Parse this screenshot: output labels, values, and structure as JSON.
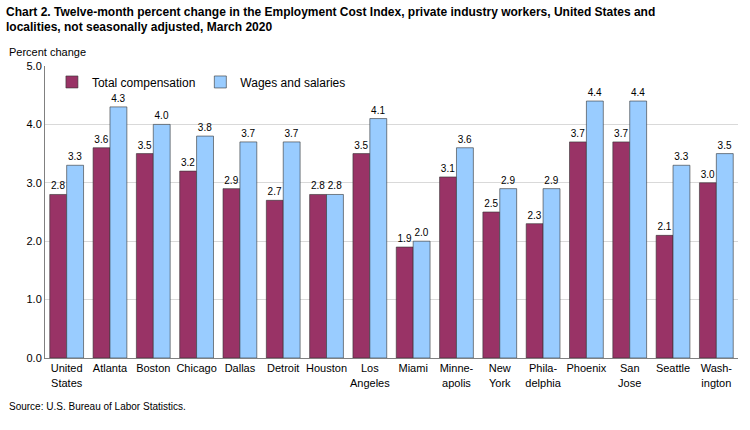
{
  "chart_data": {
    "type": "bar",
    "title": "Chart 2. Twelve-month percent change in the Employment Cost Index, private industry workers, United States and\nlocalities, not seasonally adjusted, March 2020",
    "y_label": "Percent change",
    "source": "Source: U.S. Bureau of Labor Statistics.",
    "categories": [
      "United\nStates",
      "Atlanta",
      "Boston",
      "Chicago",
      "Dallas",
      "Detroit",
      "Houston",
      "Los\nAngeles",
      "Miami",
      "Minne-\napolis",
      "New\nYork",
      "Phila-\ndelphia",
      "Phoenix",
      "San\nJose",
      "Seattle",
      "Wash-\nington"
    ],
    "series": [
      {
        "name": "Total compensation",
        "color": "#993366",
        "values": [
          2.8,
          3.6,
          3.5,
          3.2,
          2.9,
          2.7,
          2.8,
          3.5,
          1.9,
          3.1,
          2.5,
          2.3,
          3.7,
          3.7,
          2.1,
          3.0
        ],
        "value_labels": [
          "2.8",
          "3.6",
          "3.5",
          "3.2",
          "2.9",
          "2.7",
          "2.8",
          "3.5",
          "1.9",
          "3.1",
          "2.5",
          "2.3",
          "3.7",
          "3.7",
          "2.1",
          "3.0"
        ]
      },
      {
        "name": "Wages and salaries",
        "color": "#99ccff",
        "values": [
          3.3,
          4.3,
          4.0,
          3.8,
          3.7,
          3.7,
          2.8,
          4.1,
          2.0,
          3.6,
          2.9,
          2.9,
          4.4,
          4.4,
          3.3,
          3.5
        ],
        "value_labels": [
          "3.3",
          "4.3",
          "4.0",
          "3.8",
          "3.7",
          "3.7",
          "2.8",
          "4.1",
          "2.0",
          "3.6",
          "2.9",
          "2.9",
          "4.4",
          "4.4",
          "3.3",
          "3.5"
        ]
      }
    ],
    "ylim": [
      0,
      5
    ],
    "yticks": [
      {
        "value": 0,
        "label": "0.0"
      },
      {
        "value": 1,
        "label": "1.0"
      },
      {
        "value": 2,
        "label": "2.0"
      },
      {
        "value": 3,
        "label": "3.0"
      },
      {
        "value": 4,
        "label": "4.0"
      },
      {
        "value": 5,
        "label": "5.0"
      }
    ],
    "grid": true,
    "legend": "top left",
    "data_labels": true
  }
}
